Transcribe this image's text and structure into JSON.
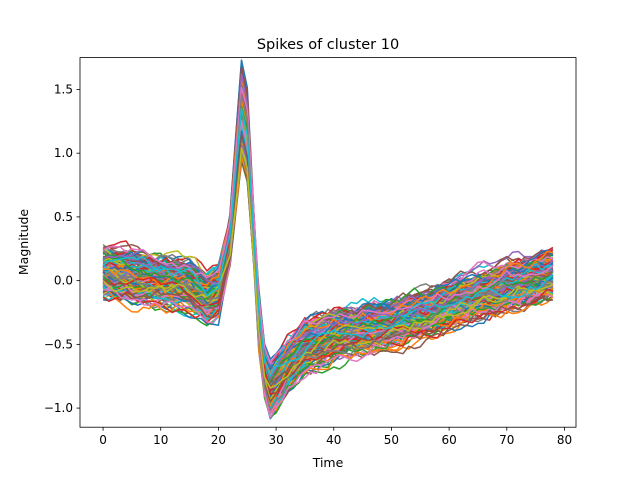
{
  "chart_data": {
    "type": "line",
    "title": "Spikes of cluster 10",
    "xlabel": "Time",
    "ylabel": "Magnitude",
    "xlim": [
      -4,
      82
    ],
    "ylim": [
      -1.15,
      1.75
    ],
    "xticks": [
      0,
      10,
      20,
      30,
      40,
      50,
      60,
      70,
      80
    ],
    "yticks": [
      -1.0,
      -0.5,
      0.0,
      0.5,
      1.0,
      1.5
    ],
    "ytick_labels": [
      "−1.0",
      "−0.5",
      "0.0",
      "0.5",
      "1.0",
      "1.5"
    ],
    "n_samples": 79,
    "colors": [
      "#1f77b4",
      "#ff7f0e",
      "#2ca02c",
      "#d62728",
      "#9467bd",
      "#8c564b",
      "#e377c2",
      "#7f7f7f",
      "#bcbd22",
      "#17becf"
    ],
    "template": {
      "x": [
        0,
        5,
        10,
        15,
        18,
        20,
        22,
        23,
        24,
        25,
        26,
        27,
        28,
        29,
        30,
        32,
        35,
        40,
        50,
        60,
        70,
        78
      ],
      "y": [
        0.05,
        0.02,
        0.0,
        -0.05,
        -0.15,
        -0.1,
        0.3,
        0.8,
        1.3,
        1.1,
        0.4,
        -0.3,
        -0.75,
        -0.9,
        -0.85,
        -0.7,
        -0.55,
        -0.45,
        -0.35,
        -0.2,
        -0.05,
        0.05
      ]
    },
    "n_series": 150,
    "grid": false,
    "legend": "none"
  }
}
